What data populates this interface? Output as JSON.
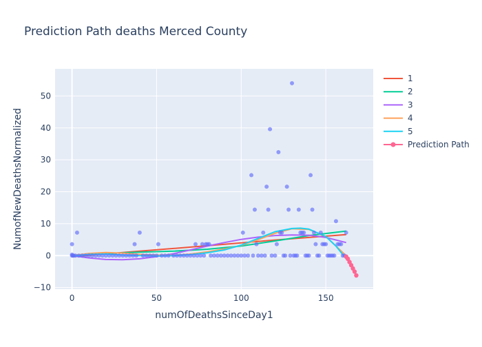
{
  "chart_data": {
    "type": "scatter",
    "title": "Prediction Path deaths Merced County",
    "xlabel": "numOfDeathsSinceDay1",
    "ylabel": "NumofNewDeathsNormalized",
    "xlim": [
      -10,
      178
    ],
    "ylim": [
      -10.5,
      58.5
    ],
    "x_ticks": [
      0,
      50,
      100,
      150
    ],
    "y_ticks": [
      -10,
      0,
      10,
      20,
      30,
      40,
      50
    ],
    "grid": true,
    "legend_position": "right",
    "colors": {
      "background": "#e5ecf6",
      "grid": "#ffffff",
      "scatter": "#636efa",
      "series_1": "#ef553b",
      "series_2": "#00cc96",
      "series_3": "#ab63fa",
      "series_4": "#ffa15a",
      "series_5": "#19d3f3",
      "prediction_path": "#ff6692"
    },
    "scatter_points": [
      {
        "x": 0,
        "y": 3.6
      },
      {
        "x": 0,
        "y": 0.3
      },
      {
        "x": 0,
        "y": 0
      },
      {
        "x": 0.5,
        "y": 0
      },
      {
        "x": 1,
        "y": 0
      },
      {
        "x": 2,
        "y": 0
      },
      {
        "x": 3,
        "y": 7.2
      },
      {
        "x": 4,
        "y": 0
      },
      {
        "x": 6,
        "y": 0
      },
      {
        "x": 8,
        "y": 0
      },
      {
        "x": 10,
        "y": 0
      },
      {
        "x": 12,
        "y": 0
      },
      {
        "x": 14,
        "y": 0
      },
      {
        "x": 16,
        "y": 0
      },
      {
        "x": 18,
        "y": 0
      },
      {
        "x": 20,
        "y": 0
      },
      {
        "x": 22,
        "y": 0
      },
      {
        "x": 24,
        "y": 0
      },
      {
        "x": 26,
        "y": 0
      },
      {
        "x": 28,
        "y": 0
      },
      {
        "x": 30,
        "y": 0
      },
      {
        "x": 32,
        "y": 0
      },
      {
        "x": 34,
        "y": 0
      },
      {
        "x": 36,
        "y": 0
      },
      {
        "x": 37,
        "y": 3.6
      },
      {
        "x": 38,
        "y": 0
      },
      {
        "x": 40,
        "y": 7.2
      },
      {
        "x": 42,
        "y": 0
      },
      {
        "x": 44,
        "y": 0
      },
      {
        "x": 46,
        "y": 0
      },
      {
        "x": 48,
        "y": 0
      },
      {
        "x": 50,
        "y": 0
      },
      {
        "x": 51,
        "y": 3.6
      },
      {
        "x": 53,
        "y": 0
      },
      {
        "x": 55,
        "y": 0
      },
      {
        "x": 57,
        "y": 0
      },
      {
        "x": 60,
        "y": 0
      },
      {
        "x": 62,
        "y": 0
      },
      {
        "x": 64,
        "y": 0
      },
      {
        "x": 66,
        "y": 0
      },
      {
        "x": 68,
        "y": 0
      },
      {
        "x": 70,
        "y": 0
      },
      {
        "x": 72,
        "y": 0
      },
      {
        "x": 73,
        "y": 3.6
      },
      {
        "x": 74,
        "y": 0
      },
      {
        "x": 76,
        "y": 0
      },
      {
        "x": 77,
        "y": 3.6
      },
      {
        "x": 78,
        "y": 0
      },
      {
        "x": 79,
        "y": 3.6
      },
      {
        "x": 80,
        "y": 3.6
      },
      {
        "x": 81,
        "y": 3.6
      },
      {
        "x": 82,
        "y": 0
      },
      {
        "x": 84,
        "y": 0
      },
      {
        "x": 86,
        "y": 0
      },
      {
        "x": 88,
        "y": 0
      },
      {
        "x": 90,
        "y": 0
      },
      {
        "x": 92,
        "y": 0
      },
      {
        "x": 94,
        "y": 0
      },
      {
        "x": 96,
        "y": 0
      },
      {
        "x": 98,
        "y": 0
      },
      {
        "x": 100,
        "y": 0
      },
      {
        "x": 101,
        "y": 7.2
      },
      {
        "x": 102,
        "y": 0
      },
      {
        "x": 104,
        "y": 0
      },
      {
        "x": 106,
        "y": 25.2
      },
      {
        "x": 107,
        "y": 0
      },
      {
        "x": 108,
        "y": 14.4
      },
      {
        "x": 109,
        "y": 3.6
      },
      {
        "x": 110,
        "y": 0
      },
      {
        "x": 112,
        "y": 0
      },
      {
        "x": 113,
        "y": 7.2
      },
      {
        "x": 114,
        "y": 0
      },
      {
        "x": 115,
        "y": 21.6
      },
      {
        "x": 116,
        "y": 14.4
      },
      {
        "x": 117,
        "y": 39.6
      },
      {
        "x": 118,
        "y": 0
      },
      {
        "x": 120,
        "y": 0
      },
      {
        "x": 121,
        "y": 3.6
      },
      {
        "x": 122,
        "y": 32.4
      },
      {
        "x": 123,
        "y": 7.2
      },
      {
        "x": 124,
        "y": 7.2
      },
      {
        "x": 125,
        "y": 0
      },
      {
        "x": 126,
        "y": 0
      },
      {
        "x": 127,
        "y": 21.6
      },
      {
        "x": 128,
        "y": 14.4
      },
      {
        "x": 129,
        "y": 0
      },
      {
        "x": 130,
        "y": 54
      },
      {
        "x": 131,
        "y": 0
      },
      {
        "x": 132,
        "y": 0
      },
      {
        "x": 133,
        "y": 0
      },
      {
        "x": 134,
        "y": 14.4
      },
      {
        "x": 135,
        "y": 7.2
      },
      {
        "x": 136,
        "y": 7.2
      },
      {
        "x": 137,
        "y": 7.2
      },
      {
        "x": 138,
        "y": 0
      },
      {
        "x": 139,
        "y": 0
      },
      {
        "x": 140,
        "y": 0
      },
      {
        "x": 141,
        "y": 25.2
      },
      {
        "x": 142,
        "y": 14.4
      },
      {
        "x": 143,
        "y": 7.2
      },
      {
        "x": 144,
        "y": 3.6
      },
      {
        "x": 145,
        "y": 0
      },
      {
        "x": 146,
        "y": 0
      },
      {
        "x": 147,
        "y": 7.2
      },
      {
        "x": 148,
        "y": 3.6
      },
      {
        "x": 149,
        "y": 3.6
      },
      {
        "x": 150,
        "y": 3.6
      },
      {
        "x": 151,
        "y": 0
      },
      {
        "x": 152,
        "y": 0
      },
      {
        "x": 153,
        "y": 0
      },
      {
        "x": 154,
        "y": 0
      },
      {
        "x": 155,
        "y": 0
      },
      {
        "x": 156,
        "y": 10.8
      },
      {
        "x": 157,
        "y": 3.6
      },
      {
        "x": 158,
        "y": 3.6
      },
      {
        "x": 159,
        "y": 3.6
      },
      {
        "x": 160,
        "y": 0
      },
      {
        "x": 161,
        "y": 0
      },
      {
        "x": 162,
        "y": 7.2
      }
    ],
    "series": [
      {
        "name": "1",
        "color": "#ef553b",
        "x": [
          0,
          40,
          80,
          120,
          162
        ],
        "y": [
          -0.3,
          1.4,
          3.1,
          4.9,
          6.6
        ]
      },
      {
        "name": "2",
        "color": "#00cc96",
        "x": [
          0,
          20,
          40,
          60,
          80,
          100,
          120,
          140,
          162
        ],
        "y": [
          0.1,
          0.7,
          1.1,
          1.4,
          2.0,
          3.0,
          4.6,
          6.3,
          7.7
        ]
      },
      {
        "name": "3",
        "color": "#ab63fa",
        "x": [
          0,
          10,
          20,
          30,
          40,
          50,
          60,
          70,
          80,
          90,
          100,
          110,
          120,
          130,
          140,
          150,
          162
        ],
        "y": [
          0,
          -0.7,
          -1.2,
          -1.3,
          -1.0,
          -0.3,
          0.6,
          1.8,
          3.0,
          4.1,
          5.1,
          5.8,
          6.3,
          6.5,
          6.4,
          5.7,
          4.1
        ]
      },
      {
        "name": "4",
        "color": "#ffa15a",
        "x": [
          0,
          10,
          20,
          30,
          40,
          50,
          60,
          70,
          80,
          90,
          100,
          110,
          120,
          130,
          140,
          150,
          162
        ],
        "y": [
          0,
          0.7,
          1.0,
          0.8,
          0.4,
          0.2,
          0.1,
          0.5,
          1.2,
          2.1,
          3.2,
          5.0,
          7.0,
          8.4,
          8.2,
          6.0,
          0
        ]
      },
      {
        "name": "5",
        "color": "#19d3f3",
        "x": [
          0,
          10,
          20,
          30,
          40,
          50,
          60,
          70,
          80,
          90,
          100,
          110,
          120,
          130,
          135,
          140,
          150,
          156,
          162
        ],
        "y": [
          -0.2,
          0.4,
          0.5,
          0.2,
          0.0,
          -0.1,
          0.0,
          0.3,
          0.9,
          1.8,
          3.3,
          5.4,
          7.5,
          8.5,
          8.6,
          8.3,
          6.0,
          3.0,
          -1.0
        ]
      },
      {
        "name": "Prediction Path",
        "color": "#ff6692",
        "markers": true,
        "x": [
          162,
          163,
          164,
          165,
          166,
          167,
          168
        ],
        "y": [
          -0.3,
          -1.0,
          -2.0,
          -3.0,
          -4.0,
          -5.0,
          -6.2
        ]
      }
    ]
  }
}
